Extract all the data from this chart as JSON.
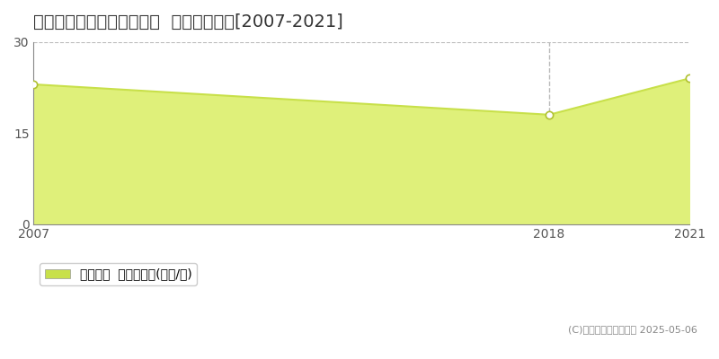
{
  "title": "北葛飾郡松伏町ゆめみ野東  土地価格推移[2007-2021]",
  "years": [
    2007,
    2018,
    2021
  ],
  "values": [
    23.0,
    18.0,
    24.0
  ],
  "line_color": "#c8e04a",
  "fill_color": "#dff07a",
  "fill_alpha": 1.0,
  "marker_color": "white",
  "marker_edgecolor": "#b0c030",
  "vline_year": 2018,
  "vline_color": "#bbbbbb",
  "vline_style": "--",
  "xlim": [
    2007,
    2021
  ],
  "ylim": [
    0,
    30
  ],
  "yticks": [
    0,
    15,
    30
  ],
  "xticks": [
    2007,
    2018,
    2021
  ],
  "grid_color": "#bbbbbb",
  "grid_style": "--",
  "background_color": "#ffffff",
  "legend_label": "土地価格  平均坪単価(万円/坪)",
  "copyright_text": "(C)土地価格ドットコム 2025-05-06",
  "title_fontsize": 14,
  "tick_fontsize": 10,
  "legend_fontsize": 10,
  "legend_marker_color": "#c8e04a"
}
